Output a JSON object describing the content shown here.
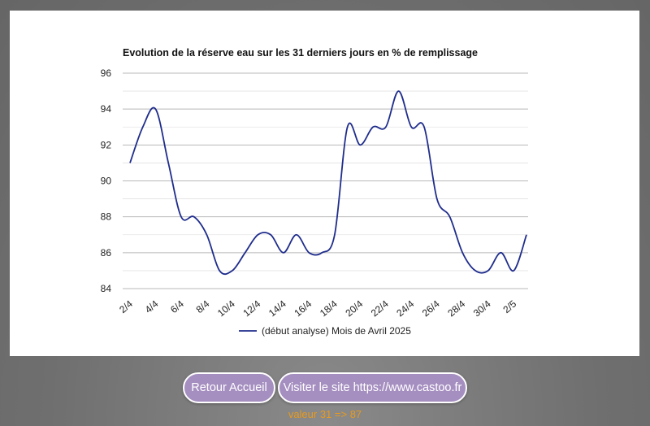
{
  "chart_data": {
    "type": "line",
    "title": "Evolution de la réserve eau sur les 31 derniers jours en % de remplissage",
    "xlabel": "",
    "ylabel": "",
    "x": [
      "2/4",
      "3/4",
      "4/4",
      "5/4",
      "6/4",
      "7/4",
      "8/4",
      "9/4",
      "10/4",
      "11/4",
      "12/4",
      "13/4",
      "14/4",
      "15/4",
      "16/4",
      "17/4",
      "18/4",
      "19/4",
      "20/4",
      "21/4",
      "22/4",
      "23/4",
      "24/4",
      "25/4",
      "26/4",
      "27/4",
      "28/4",
      "29/4",
      "30/4",
      "1/5",
      "2/5",
      "3/5"
    ],
    "x_tick_labels": [
      "2/4",
      "4/4",
      "6/4",
      "8/4",
      "10/4",
      "12/4",
      "14/4",
      "16/4",
      "18/4",
      "20/4",
      "22/4",
      "24/4",
      "26/4",
      "28/4",
      "30/4",
      "2/5"
    ],
    "series": [
      {
        "name": "(début analyse) Mois de Avril 2025",
        "color": "#1f2d8c",
        "values": [
          91,
          93,
          94,
          91,
          88,
          88,
          87,
          85,
          85,
          86,
          87,
          87,
          86,
          87,
          86,
          86,
          87,
          93,
          92,
          93,
          93,
          95,
          93,
          93,
          89,
          88,
          86,
          85,
          85,
          86,
          85,
          87
        ]
      }
    ],
    "ylim": [
      84,
      96
    ],
    "y_ticks": [
      84,
      86,
      88,
      90,
      92,
      94,
      96
    ],
    "grid": true,
    "legend_position": "bottom"
  },
  "buttons": {
    "home_label": "Retour Accueil",
    "site_label": "Visiter le site https://www.castoo.fr"
  },
  "status": "valeur 31 => 87",
  "colors": {
    "button_bg": "#a58ec0",
    "status_text": "#e89a1e",
    "line": "#1f2d8c"
  }
}
